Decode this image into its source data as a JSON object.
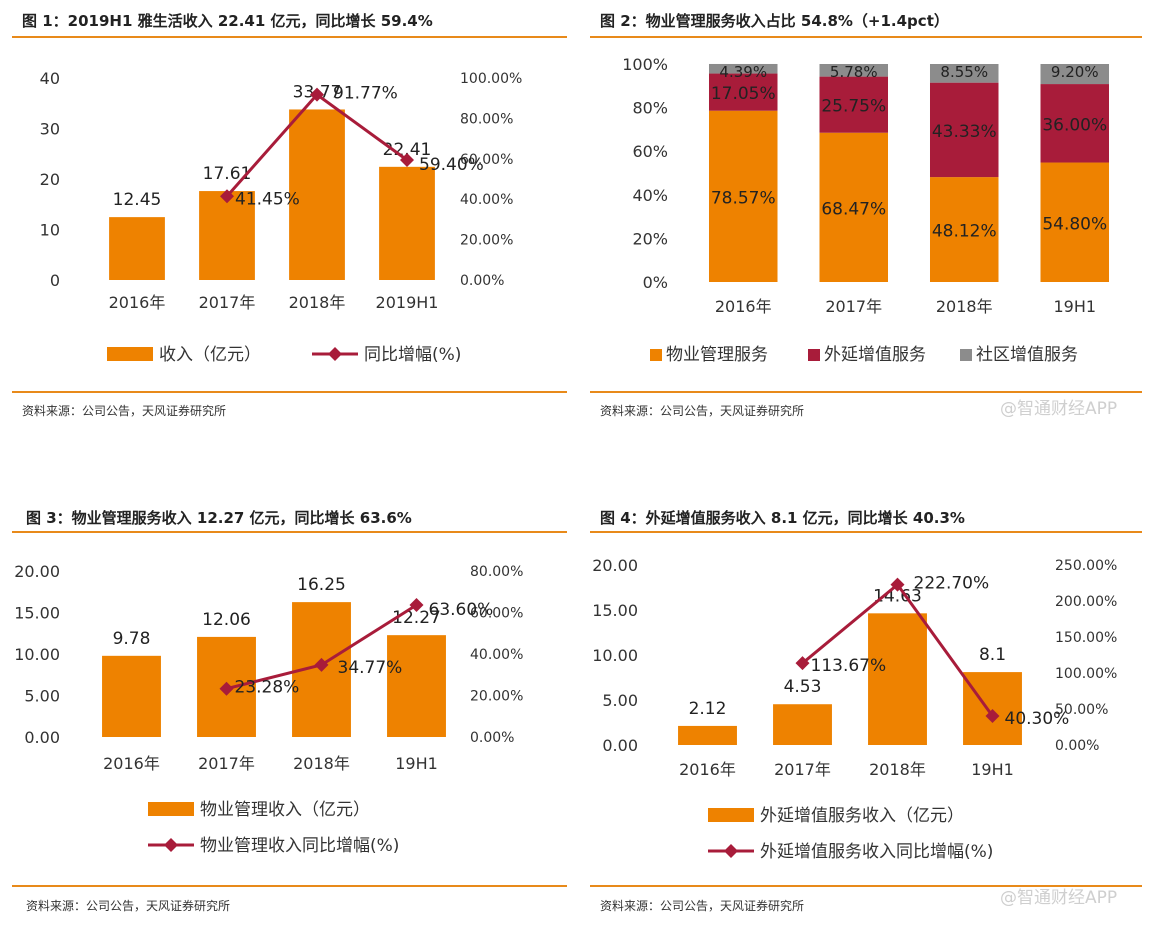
{
  "watermark": "@智通财经APP",
  "colors": {
    "orange": "#ee8200",
    "maroon": "#a81c3a",
    "gray": "#8c8c8c",
    "rule": "#e88a1a"
  },
  "charts": [
    {
      "title": "图 1：2019H1 雅生活收入 22.41 亿元，同比增长 59.4%",
      "source": "资料来源：公司公告，天风证券研究所",
      "chart_data": {
        "type": "bar+line",
        "categories": [
          "2016年",
          "2017年",
          "2018年",
          "2019H1"
        ],
        "bar_name": "收入（亿元）",
        "bar_values": [
          12.45,
          17.61,
          33.77,
          22.41
        ],
        "bar_labels": [
          "12.45",
          "17.61",
          "33.77",
          "22.41"
        ],
        "left_ylim": [
          0,
          40
        ],
        "left_ticks": [
          0,
          10,
          20,
          30,
          40
        ],
        "left_tick_labels": [
          "0",
          "10",
          "20",
          "30",
          "40"
        ],
        "line_name": "同比增幅(%)",
        "line_values": [
          null,
          41.45,
          91.77,
          59.4
        ],
        "line_labels": [
          "",
          "41.45%",
          "91.77%",
          "59.40%"
        ],
        "right_ylim": [
          0,
          100
        ],
        "right_ticks": [
          0,
          20,
          40,
          60,
          80,
          100
        ],
        "right_tick_labels": [
          "0.00%",
          "20.00%",
          "40.00%",
          "60.00%",
          "80.00%",
          "100.00%"
        ],
        "legend": [
          "收入（亿元）",
          "同比增幅(%)"
        ],
        "legend_layout": "horizontal-bottom"
      }
    },
    {
      "title": "图 2：物业管理服务收入占比 54.8%（+1.4pct）",
      "source": "资料来源：公司公告，天风证券研究所",
      "chart_data": {
        "type": "stacked-bar-100",
        "categories": [
          "2016年",
          "2017年",
          "2018年",
          "19H1"
        ],
        "series": [
          {
            "name": "物业管理服务",
            "values": [
              78.57,
              68.47,
              48.12,
              54.8
            ],
            "labels": [
              "78.57%",
              "68.47%",
              "48.12%",
              "54.80%"
            ]
          },
          {
            "name": "外延增值服务",
            "values": [
              17.05,
              25.75,
              43.33,
              36.0
            ],
            "labels": [
              "17.05%",
              "25.75%",
              "43.33%",
              "36.00%"
            ]
          },
          {
            "name": "社区增值服务",
            "values": [
              4.39,
              5.78,
              8.55,
              9.2
            ],
            "labels": [
              "4.39%",
              "5.78%",
              "8.55%",
              "9.20%"
            ]
          }
        ],
        "ylim": [
          0,
          100
        ],
        "ticks": [
          0,
          20,
          40,
          60,
          80,
          100
        ],
        "tick_labels": [
          "0%",
          "20%",
          "40%",
          "60%",
          "80%",
          "100%"
        ],
        "legend": [
          "物业管理服务",
          "外延增值服务",
          "社区增值服务"
        ]
      }
    },
    {
      "title": "图 3：物业管理服务收入 12.27 亿元，同比增长 63.6%",
      "source": "资料来源：公司公告，天风证券研究所",
      "chart_data": {
        "type": "bar+line",
        "categories": [
          "2016年",
          "2017年",
          "2018年",
          "19H1"
        ],
        "bar_name": "物业管理收入（亿元）",
        "bar_values": [
          9.78,
          12.06,
          16.25,
          12.27
        ],
        "bar_labels": [
          "9.78",
          "12.06",
          "16.25",
          "12.27"
        ],
        "left_ylim": [
          0,
          20
        ],
        "left_ticks": [
          0,
          5,
          10,
          15,
          20
        ],
        "left_tick_labels": [
          "0.00",
          "5.00",
          "10.00",
          "15.00",
          "20.00"
        ],
        "line_name": "物业管理收入同比增幅(%)",
        "line_values": [
          null,
          23.28,
          34.77,
          63.6
        ],
        "line_labels": [
          "",
          "23.28%",
          "34.77%",
          "63.60%"
        ],
        "right_ylim": [
          0,
          80
        ],
        "right_ticks": [
          0,
          20,
          40,
          60,
          80
        ],
        "right_tick_labels": [
          "0.00%",
          "20.00%",
          "40.00%",
          "60.00%",
          "80.00%"
        ],
        "legend": [
          "物业管理收入（亿元）",
          "物业管理收入同比增幅(%)"
        ],
        "legend_layout": "vertical-bottom"
      }
    },
    {
      "title": "图 4：外延增值服务收入 8.1 亿元，同比增长 40.3%",
      "source": "资料来源：公司公告，天风证券研究所",
      "chart_data": {
        "type": "bar+line",
        "categories": [
          "2016年",
          "2017年",
          "2018年",
          "19H1"
        ],
        "bar_name": "外延增值服务收入（亿元）",
        "bar_values": [
          2.12,
          4.53,
          14.63,
          8.1
        ],
        "bar_labels": [
          "2.12",
          "4.53",
          "14.63",
          "8.1"
        ],
        "left_ylim": [
          0,
          20
        ],
        "left_ticks": [
          0,
          5,
          10,
          15,
          20
        ],
        "left_tick_labels": [
          "0.00",
          "5.00",
          "10.00",
          "15.00",
          "20.00"
        ],
        "line_name": "外延增值服务收入同比增幅(%)",
        "line_values": [
          null,
          113.67,
          222.7,
          40.3
        ],
        "line_labels": [
          "",
          "113.67%",
          "222.70%",
          "40.30%"
        ],
        "right_ylim": [
          0,
          250
        ],
        "right_ticks": [
          0,
          50,
          100,
          150,
          200,
          250
        ],
        "right_tick_labels": [
          "0.00%",
          "50.00%",
          "100.00%",
          "150.00%",
          "200.00%",
          "250.00%"
        ],
        "legend": [
          "外延增值服务收入（亿元）",
          "外延增值服务收入同比增幅(%)"
        ],
        "legend_layout": "vertical-bottom"
      }
    }
  ]
}
